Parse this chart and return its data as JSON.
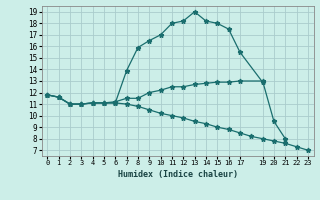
{
  "title": "",
  "xlabel": "Humidex (Indice chaleur)",
  "bg_color": "#cceee8",
  "grid_color": "#aacccc",
  "line_color": "#1a6e6e",
  "xlim": [
    -0.5,
    23.5
  ],
  "ylim": [
    6.5,
    19.5
  ],
  "xticks": [
    0,
    1,
    2,
    3,
    4,
    5,
    6,
    7,
    8,
    9,
    10,
    11,
    12,
    13,
    14,
    15,
    16,
    17,
    19,
    20,
    21,
    22,
    23
  ],
  "yticks": [
    7,
    8,
    9,
    10,
    11,
    12,
    13,
    14,
    15,
    16,
    17,
    18,
    19
  ],
  "series": [
    {
      "x": [
        0,
        1,
        2,
        3,
        4,
        5,
        6,
        7,
        8,
        9,
        10,
        11,
        12,
        13,
        14,
        15,
        16,
        17,
        19
      ],
      "y": [
        11.8,
        11.6,
        11.0,
        11.0,
        11.1,
        11.1,
        11.1,
        13.9,
        15.9,
        16.5,
        17.0,
        18.0,
        18.2,
        19.0,
        18.2,
        18.0,
        17.5,
        15.5,
        12.9
      ]
    },
    {
      "x": [
        0,
        1,
        2,
        3,
        4,
        5,
        6,
        7,
        8,
        9,
        10,
        11,
        12,
        13,
        14,
        15,
        16,
        17,
        19,
        20,
        21
      ],
      "y": [
        11.8,
        11.6,
        11.0,
        11.0,
        11.1,
        11.1,
        11.2,
        11.5,
        11.5,
        12.0,
        12.2,
        12.5,
        12.5,
        12.7,
        12.8,
        12.9,
        12.9,
        13.0,
        13.0,
        9.5,
        8.0
      ]
    },
    {
      "x": [
        0,
        1,
        2,
        3,
        4,
        5,
        6,
        7,
        8,
        9,
        10,
        11,
        12,
        13,
        14,
        15,
        16,
        17,
        18,
        19,
        20,
        21,
        22,
        23
      ],
      "y": [
        11.8,
        11.6,
        11.0,
        11.0,
        11.1,
        11.1,
        11.1,
        11.0,
        10.8,
        10.5,
        10.2,
        10.0,
        9.8,
        9.5,
        9.3,
        9.0,
        8.8,
        8.5,
        8.2,
        8.0,
        7.8,
        7.6,
        7.3,
        7.0
      ]
    }
  ]
}
